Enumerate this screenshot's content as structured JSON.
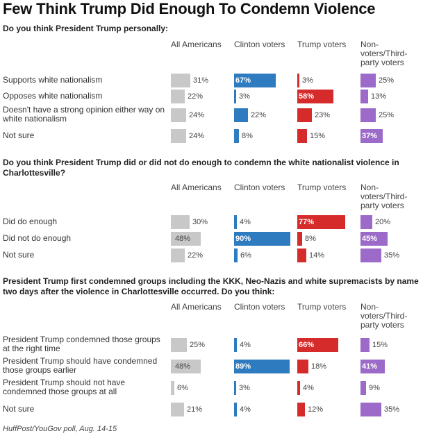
{
  "title": "Few Think Trump Did Enough To Condemn Violence",
  "source": "HuffPost/YouGov poll, Aug. 14-15",
  "colors": {
    "All Americans": "#c8c8c8",
    "Clinton voters": "#2f7bbf",
    "Trump voters": "#d62b2b",
    "Non-voters/Third-party voters": "#9c6bc9"
  },
  "chart_data": [
    {
      "type": "bar",
      "title": "Do you think President Trump personally:",
      "series_names": [
        "All Americans",
        "Clinton voters",
        "Trump voters",
        "Non-voters/Third-party voters"
      ],
      "rows": [
        {
          "label": "Supports white nationalism",
          "values": [
            31,
            67,
            3,
            25
          ]
        },
        {
          "label": "Opposes white nationalism",
          "values": [
            22,
            3,
            58,
            13
          ]
        },
        {
          "label": "Doesn't have a strong opinion either way on white nationalism",
          "values": [
            24,
            22,
            23,
            25
          ]
        },
        {
          "label": "Not sure",
          "values": [
            24,
            8,
            15,
            37
          ]
        }
      ],
      "unit": "%"
    },
    {
      "type": "bar",
      "title": "Do you think President Trump did or did not do enough to condemn the white nationalist violence in Charlottesville?",
      "series_names": [
        "All Americans",
        "Clinton voters",
        "Trump voters",
        "Non-voters/Third-party voters"
      ],
      "rows": [
        {
          "label": "Did do enough",
          "values": [
            30,
            4,
            77,
            20
          ]
        },
        {
          "label": "Did not do enough",
          "values": [
            48,
            90,
            8,
            45
          ]
        },
        {
          "label": "Not sure",
          "values": [
            22,
            6,
            14,
            35
          ]
        }
      ],
      "unit": "%"
    },
    {
      "type": "bar",
      "title": "President Trump first condemned groups including the KKK, Neo-Nazis and white supremacists by name two days after the violence in Charlottesville occurred. Do you think:",
      "series_names": [
        "All Americans",
        "Clinton voters",
        "Trump voters",
        "Non-voters/Third-party voters"
      ],
      "rows": [
        {
          "label": "President Trump condemned those groups at the right time",
          "values": [
            25,
            4,
            66,
            15
          ]
        },
        {
          "label": "President Trump should have condemned those groups earlier",
          "values": [
            48,
            89,
            18,
            41
          ]
        },
        {
          "label": "President Trump should not have condemned those groups at all",
          "values": [
            6,
            3,
            4,
            9
          ]
        },
        {
          "label": "Not sure",
          "values": [
            21,
            4,
            12,
            35
          ]
        }
      ],
      "unit": "%"
    }
  ]
}
